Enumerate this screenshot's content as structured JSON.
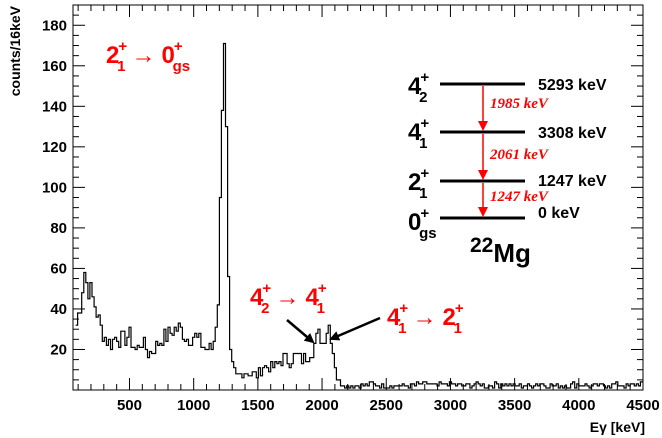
{
  "chart_data": {
    "type": "line",
    "style": "histogram",
    "xlabel": "Eγ [keV]",
    "ylabel": "counts/16keV",
    "xlim": [
      60,
      4500
    ],
    "ylim": [
      0,
      190
    ],
    "x_ticks": [
      500,
      1000,
      1500,
      2000,
      2500,
      3000,
      3500,
      4000,
      4500
    ],
    "y_ticks": [
      20,
      40,
      60,
      80,
      100,
      120,
      140,
      160,
      180
    ],
    "x_tick_labels": [
      "500",
      "1000",
      "1500",
      "2000",
      "2500",
      "3000",
      "3500",
      "4000",
      "4500"
    ],
    "y_tick_labels": [
      "20",
      "40",
      "60",
      "80",
      "100",
      "120",
      "140",
      "160",
      "180"
    ],
    "grid": false,
    "line_color": "#000000",
    "annotation_color": "#ff0000",
    "series": [
      {
        "bin_width_keV": 16,
        "points": [
          [
            80,
            30
          ],
          [
            120,
            42
          ],
          [
            150,
            60
          ],
          [
            170,
            52
          ],
          [
            200,
            48
          ],
          [
            240,
            40
          ],
          [
            280,
            30
          ],
          [
            320,
            25
          ],
          [
            360,
            23
          ],
          [
            400,
            27
          ],
          [
            450,
            24
          ],
          [
            500,
            27
          ],
          [
            550,
            19
          ],
          [
            600,
            24
          ],
          [
            650,
            18
          ],
          [
            700,
            21
          ],
          [
            750,
            25
          ],
          [
            800,
            27
          ],
          [
            850,
            30
          ],
          [
            900,
            30
          ],
          [
            950,
            25
          ],
          [
            1000,
            27
          ],
          [
            1050,
            24
          ],
          [
            1100,
            20
          ],
          [
            1150,
            20
          ],
          [
            1190,
            40
          ],
          [
            1215,
            110
          ],
          [
            1232,
            178
          ],
          [
            1247,
            176
          ],
          [
            1262,
            90
          ],
          [
            1280,
            20
          ],
          [
            1300,
            12
          ],
          [
            1330,
            7
          ],
          [
            1360,
            8
          ],
          [
            1400,
            9
          ],
          [
            1450,
            8
          ],
          [
            1500,
            7
          ],
          [
            1550,
            12
          ],
          [
            1600,
            11
          ],
          [
            1650,
            12
          ],
          [
            1700,
            16
          ],
          [
            1750,
            14
          ],
          [
            1800,
            17
          ],
          [
            1850,
            15
          ],
          [
            1900,
            18
          ],
          [
            1930,
            20
          ],
          [
            1960,
            25
          ],
          [
            1985,
            28
          ],
          [
            2010,
            23
          ],
          [
            2035,
            30
          ],
          [
            2061,
            33
          ],
          [
            2090,
            18
          ],
          [
            2120,
            6
          ],
          [
            2150,
            3
          ],
          [
            2200,
            2
          ],
          [
            2300,
            2
          ],
          [
            2400,
            3
          ],
          [
            2500,
            2
          ],
          [
            2600,
            2
          ],
          [
            2700,
            2
          ],
          [
            2800,
            3
          ],
          [
            2900,
            2
          ],
          [
            3000,
            3
          ],
          [
            3100,
            2
          ],
          [
            3200,
            3
          ],
          [
            3300,
            2
          ],
          [
            3400,
            3
          ],
          [
            3500,
            2
          ],
          [
            3600,
            2
          ],
          [
            3700,
            3
          ],
          [
            3800,
            2
          ],
          [
            3900,
            2
          ],
          [
            4000,
            3
          ],
          [
            4100,
            2
          ],
          [
            4200,
            2
          ],
          [
            4300,
            3
          ],
          [
            4400,
            2
          ],
          [
            4480,
            3
          ]
        ]
      }
    ],
    "annotations": {
      "peak_1247": {
        "base": "2",
        "sub": "1",
        "sup": "+",
        "arrow": "→",
        "base2": "0",
        "sub2": "gs",
        "sup2": "+"
      },
      "peak_1985": {
        "base": "4",
        "sub": "2",
        "sup": "+",
        "arrow": "→",
        "base2": "4",
        "sub2": "1",
        "sup2": "+"
      },
      "peak_2061": {
        "base": "4",
        "sub": "1",
        "sup": "+",
        "arrow": "→",
        "base2": "2",
        "sub2": "1",
        "sup2": "+"
      }
    },
    "level_scheme": {
      "nucleus_mass": "22",
      "nucleus_symbol": "Mg",
      "levels": [
        {
          "base": "4",
          "sub": "2",
          "sup": "+",
          "energy": "5293 keV"
        },
        {
          "base": "4",
          "sub": "1",
          "sup": "+",
          "energy": "3308 keV"
        },
        {
          "base": "2",
          "sub": "1",
          "sup": "+",
          "energy": "1247 keV"
        },
        {
          "base": "0",
          "sub": "gs",
          "sup": "+",
          "energy": "0 keV"
        }
      ],
      "gammas": [
        "1985 keV",
        "2061 keV",
        "1247 keV"
      ]
    }
  }
}
